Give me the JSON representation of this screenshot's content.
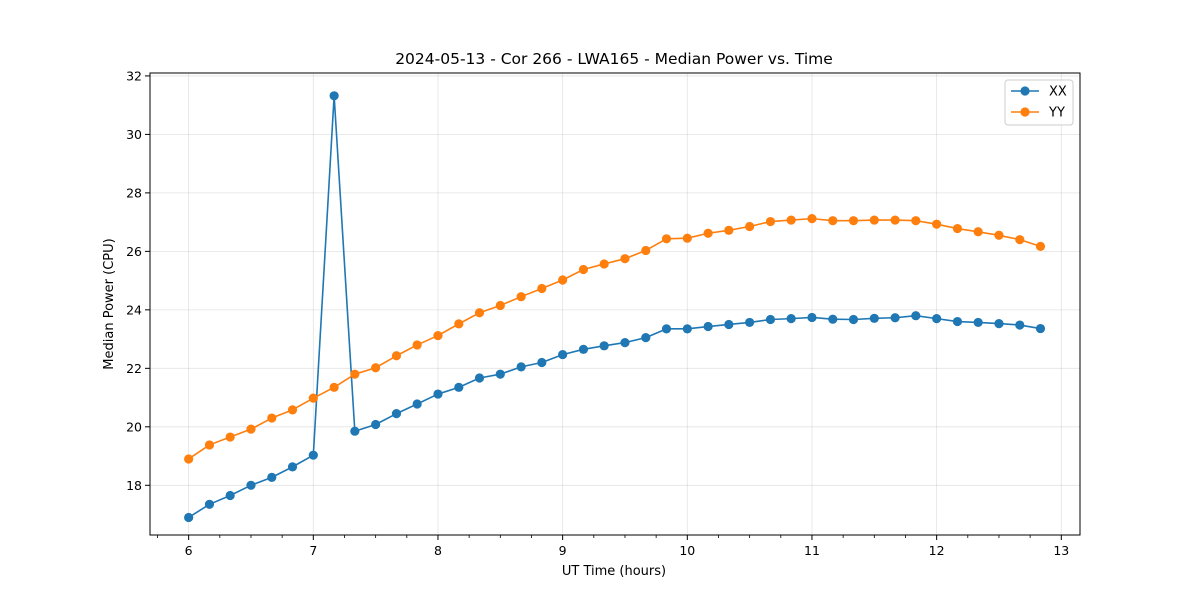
{
  "chart_data": {
    "type": "line",
    "title": "2024-05-13 - Cor 266 - LWA165 - Median Power vs. Time",
    "xlabel": "UT Time (hours)",
    "ylabel": "Median Power (CPU)",
    "xlim": [
      5.69,
      13.15
    ],
    "ylim": [
      16.3,
      32.1
    ],
    "xticks": [
      6,
      7,
      8,
      9,
      10,
      11,
      12,
      13
    ],
    "yticks": [
      18,
      20,
      22,
      24,
      26,
      28,
      30,
      32
    ],
    "grid": true,
    "legend_position": "top-right",
    "x": [
      6.0,
      6.167,
      6.333,
      6.5,
      6.667,
      6.833,
      7.0,
      7.167,
      7.333,
      7.5,
      7.667,
      7.833,
      8.0,
      8.167,
      8.333,
      8.5,
      8.667,
      8.833,
      9.0,
      9.167,
      9.333,
      9.5,
      9.667,
      9.833,
      10.0,
      10.167,
      10.333,
      10.5,
      10.667,
      10.833,
      11.0,
      11.167,
      11.333,
      11.5,
      11.667,
      11.833,
      12.0,
      12.167,
      12.333,
      12.5,
      12.667,
      12.833
    ],
    "series": [
      {
        "name": "XX",
        "color": "#1f77b4",
        "values": [
          16.9,
          17.35,
          17.65,
          18.0,
          18.27,
          18.63,
          19.03,
          31.32,
          19.85,
          20.08,
          20.45,
          20.78,
          21.12,
          21.35,
          21.67,
          21.8,
          22.05,
          22.2,
          22.47,
          22.65,
          22.77,
          22.88,
          23.05,
          23.35,
          23.35,
          23.43,
          23.5,
          23.57,
          23.67,
          23.7,
          23.74,
          23.68,
          23.67,
          23.71,
          23.73,
          23.8,
          23.7,
          23.6,
          23.57,
          23.53,
          23.48,
          23.36
        ]
      },
      {
        "name": "YY",
        "color": "#ff7f0e",
        "values": [
          18.9,
          19.38,
          19.65,
          19.92,
          20.3,
          20.58,
          20.98,
          21.35,
          21.8,
          22.02,
          22.43,
          22.8,
          23.12,
          23.52,
          23.9,
          24.15,
          24.45,
          24.73,
          25.02,
          25.38,
          25.57,
          25.75,
          26.03,
          26.43,
          26.45,
          26.62,
          26.72,
          26.85,
          27.02,
          27.07,
          27.12,
          27.05,
          27.05,
          27.07,
          27.07,
          27.05,
          26.93,
          26.78,
          26.67,
          26.55,
          26.4,
          26.17
        ]
      }
    ]
  }
}
